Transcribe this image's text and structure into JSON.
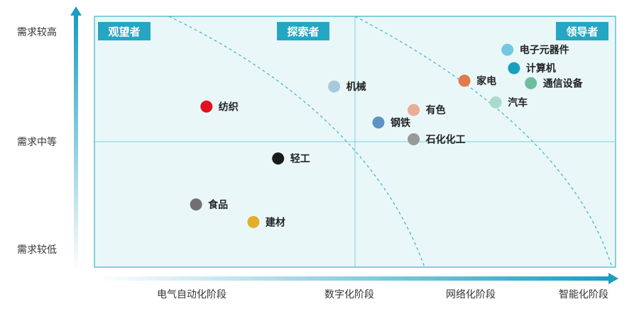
{
  "chart_data": {
    "type": "scatter",
    "title": "",
    "x_ticks": [
      "电气自动化阶段",
      "数字化阶段",
      "网络化阶段",
      "智能化阶段"
    ],
    "y_ticks": [
      "需求较低",
      "需求中等",
      "需求较高"
    ],
    "xlim": [
      0,
      4
    ],
    "ylim": [
      0,
      3
    ],
    "quadrant_labels": [
      "观望者",
      "探索者",
      "领导者"
    ],
    "points": [
      {
        "label": "电子元器件",
        "x": 3.17,
        "y": 2.6,
        "color": "#74c7de"
      },
      {
        "label": "计算机",
        "x": 3.22,
        "y": 2.38,
        "color": "#1a9ec0"
      },
      {
        "label": "家电",
        "x": 2.84,
        "y": 2.23,
        "color": "#e07b4a"
      },
      {
        "label": "通信设备",
        "x": 3.35,
        "y": 2.2,
        "color": "#6ebd9c"
      },
      {
        "label": "汽车",
        "x": 3.08,
        "y": 1.97,
        "color": "#a9dcc8"
      },
      {
        "label": "机械",
        "x": 1.84,
        "y": 2.16,
        "color": "#a8c9da"
      },
      {
        "label": "有色",
        "x": 2.45,
        "y": 1.88,
        "color": "#e9ad98"
      },
      {
        "label": "钢铁",
        "x": 2.18,
        "y": 1.73,
        "color": "#5d94c2"
      },
      {
        "label": "石化化工",
        "x": 2.45,
        "y": 1.53,
        "color": "#999999"
      },
      {
        "label": "纺织",
        "x": 0.86,
        "y": 1.92,
        "color": "#e3101f"
      },
      {
        "label": "轻工",
        "x": 1.41,
        "y": 1.3,
        "color": "#1a1a1a"
      },
      {
        "label": "食品",
        "x": 0.78,
        "y": 0.75,
        "color": "#707070"
      },
      {
        "label": "建材",
        "x": 1.22,
        "y": 0.54,
        "color": "#e3ad2a"
      }
    ],
    "grid": false,
    "colors": {
      "plot_background": "#eaf7f9",
      "border": "#3bb2c7",
      "quadrant_label_bg": "#25a6c2",
      "axis_arrow": "#1a9ec0",
      "divider": "#7fcfdc"
    }
  }
}
